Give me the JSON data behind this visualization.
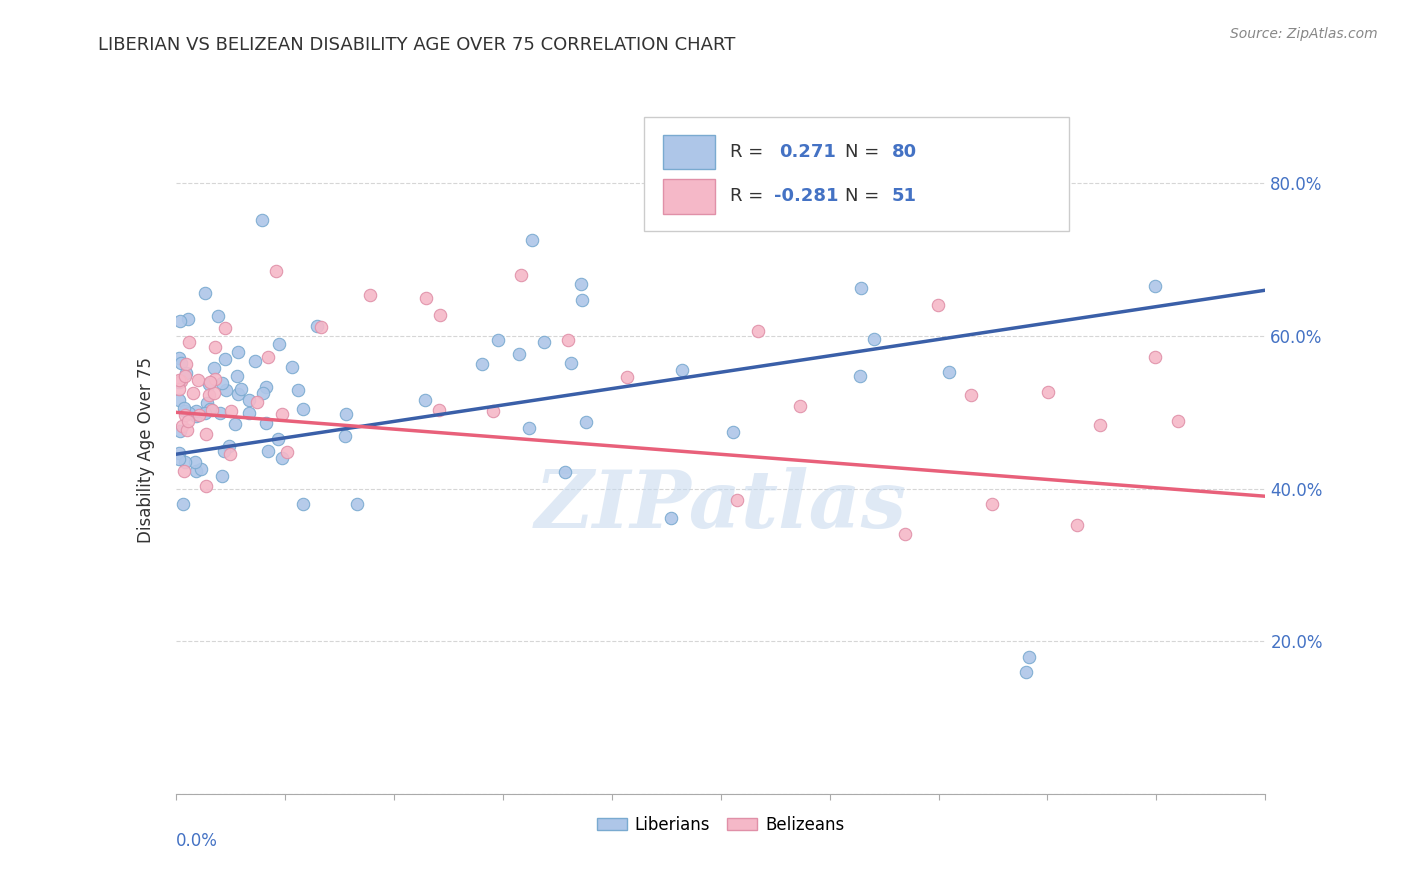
{
  "title": "LIBERIAN VS BELIZEAN DISABILITY AGE OVER 75 CORRELATION CHART",
  "source": "Source: ZipAtlas.com",
  "ylabel": "Disability Age Over 75",
  "xlim": [
    0.0,
    0.15
  ],
  "ylim": [
    0.0,
    0.9
  ],
  "xticks": [
    0.0,
    0.015,
    0.03,
    0.045,
    0.06,
    0.075,
    0.09,
    0.105,
    0.12,
    0.135,
    0.15
  ],
  "yticks": [
    0.0,
    0.2,
    0.4,
    0.6,
    0.8
  ],
  "blue_color": "#aec6e8",
  "pink_color": "#f5b8c8",
  "blue_line_color": "#3a5fa8",
  "pink_line_color": "#e8607a",
  "blue_edge_color": "#7aaad0",
  "pink_edge_color": "#e090a8",
  "watermark": "ZIPatlas",
  "legend_R_blue": "0.271",
  "legend_N_blue": "80",
  "legend_R_pink": "-0.281",
  "legend_N_pink": "51",
  "blue_trendline_x": [
    0.0,
    0.15
  ],
  "blue_trendline_y": [
    0.445,
    0.66
  ],
  "pink_trendline_x": [
    0.0,
    0.15
  ],
  "pink_trendline_y": [
    0.5,
    0.39
  ],
  "background_color": "#ffffff",
  "grid_color": "#cccccc",
  "title_color": "#333333",
  "axis_label_color": "#4472c4",
  "scatter_size": 80
}
